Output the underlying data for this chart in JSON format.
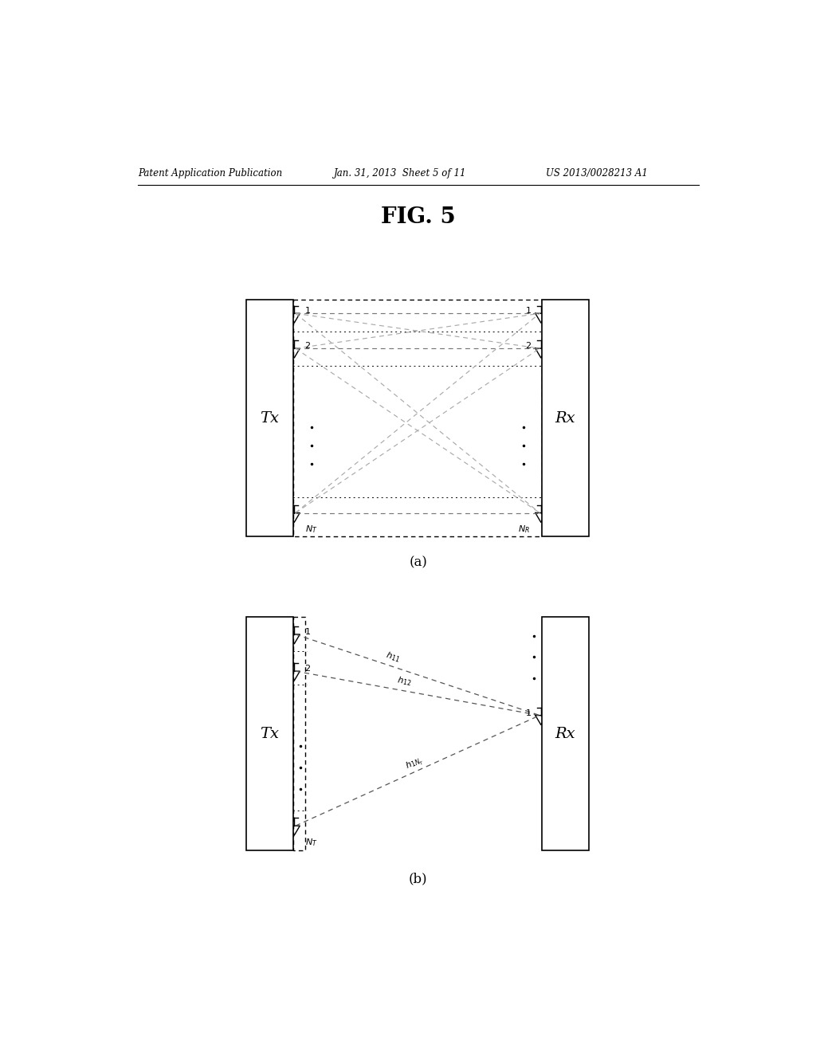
{
  "bg_color": "#ffffff",
  "header_left": "Patent Application Publication",
  "header_mid": "Jan. 31, 2013  Sheet 5 of 11",
  "header_right": "US 2013/0028213 A1",
  "fig_title": "FIG. 5",
  "diagram_a_label": "(a)",
  "diagram_b_label": "(b)",
  "tx_label": "Tx",
  "rx_label": "Rx",
  "line_color_same": "#777777",
  "line_color_cross": "#aaaaaa",
  "line_color_b": "#555555"
}
